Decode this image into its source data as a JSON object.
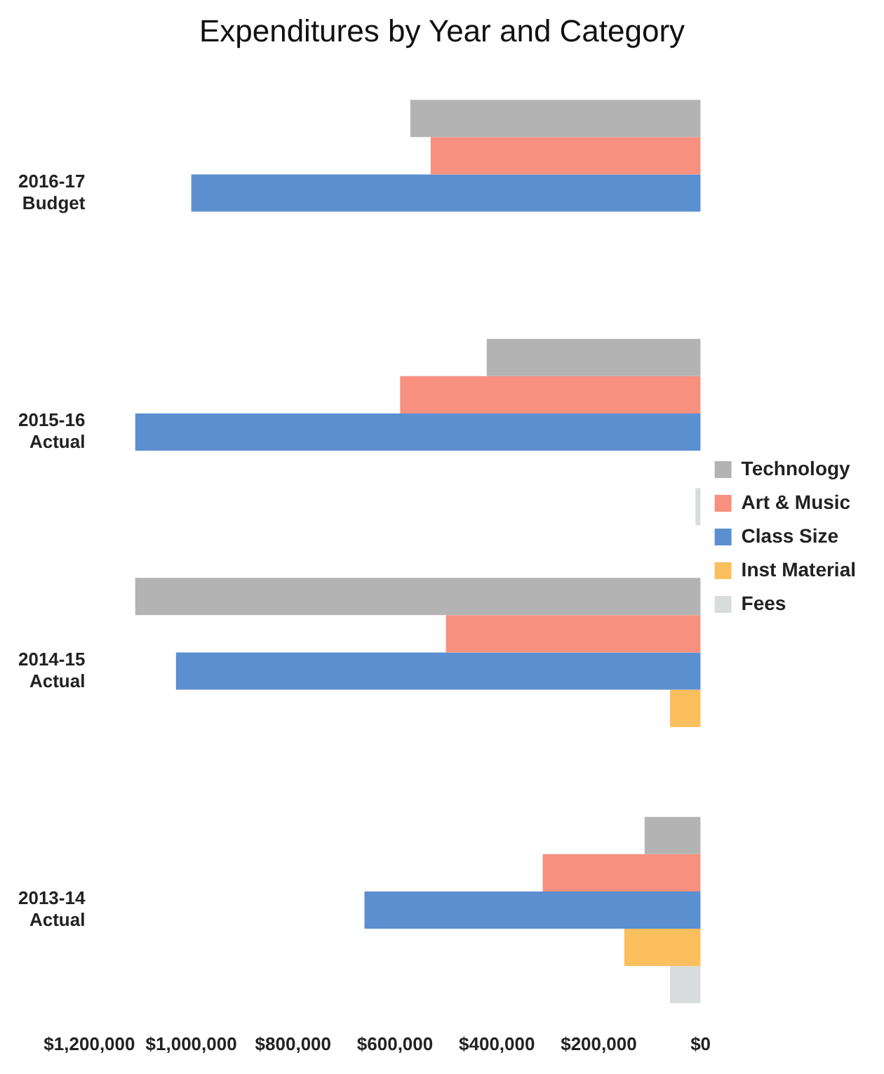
{
  "chart_data": {
    "type": "bar",
    "orientation": "horizontal",
    "title": "Expenditures by Year and Category",
    "categories": [
      "2016-17 Budget",
      "2015-16 Actual",
      "2014-15 Actual",
      "2013-14 Actual"
    ],
    "series": [
      {
        "name": "Technology",
        "color": "#b3b3b3",
        "values": [
          570000,
          420000,
          1110000,
          110000
        ]
      },
      {
        "name": "Art & Music",
        "color": "#f7907f",
        "values": [
          530000,
          590000,
          500000,
          310000
        ]
      },
      {
        "name": "Class Size",
        "color": "#5b8fd0",
        "values": [
          1000000,
          1110000,
          1030000,
          660000
        ]
      },
      {
        "name": "Inst Material",
        "color": "#fbbf5e",
        "values": [
          0,
          0,
          60000,
          150000
        ]
      },
      {
        "name": "Fees",
        "color": "#d9dcdc",
        "values": [
          0,
          10000,
          0,
          60000
        ]
      }
    ],
    "xlim": [
      1200000,
      0
    ],
    "xticks": [
      {
        "value": 1200000,
        "label": "$1,200,000"
      },
      {
        "value": 1000000,
        "label": "$1,000,000"
      },
      {
        "value": 800000,
        "label": "$800,000"
      },
      {
        "value": 600000,
        "label": "$600,000"
      },
      {
        "value": 400000,
        "label": "$400,000"
      },
      {
        "value": 200000,
        "label": "$200,000"
      },
      {
        "value": 0,
        "label": "$0"
      }
    ],
    "grid": false,
    "legend": "right"
  }
}
